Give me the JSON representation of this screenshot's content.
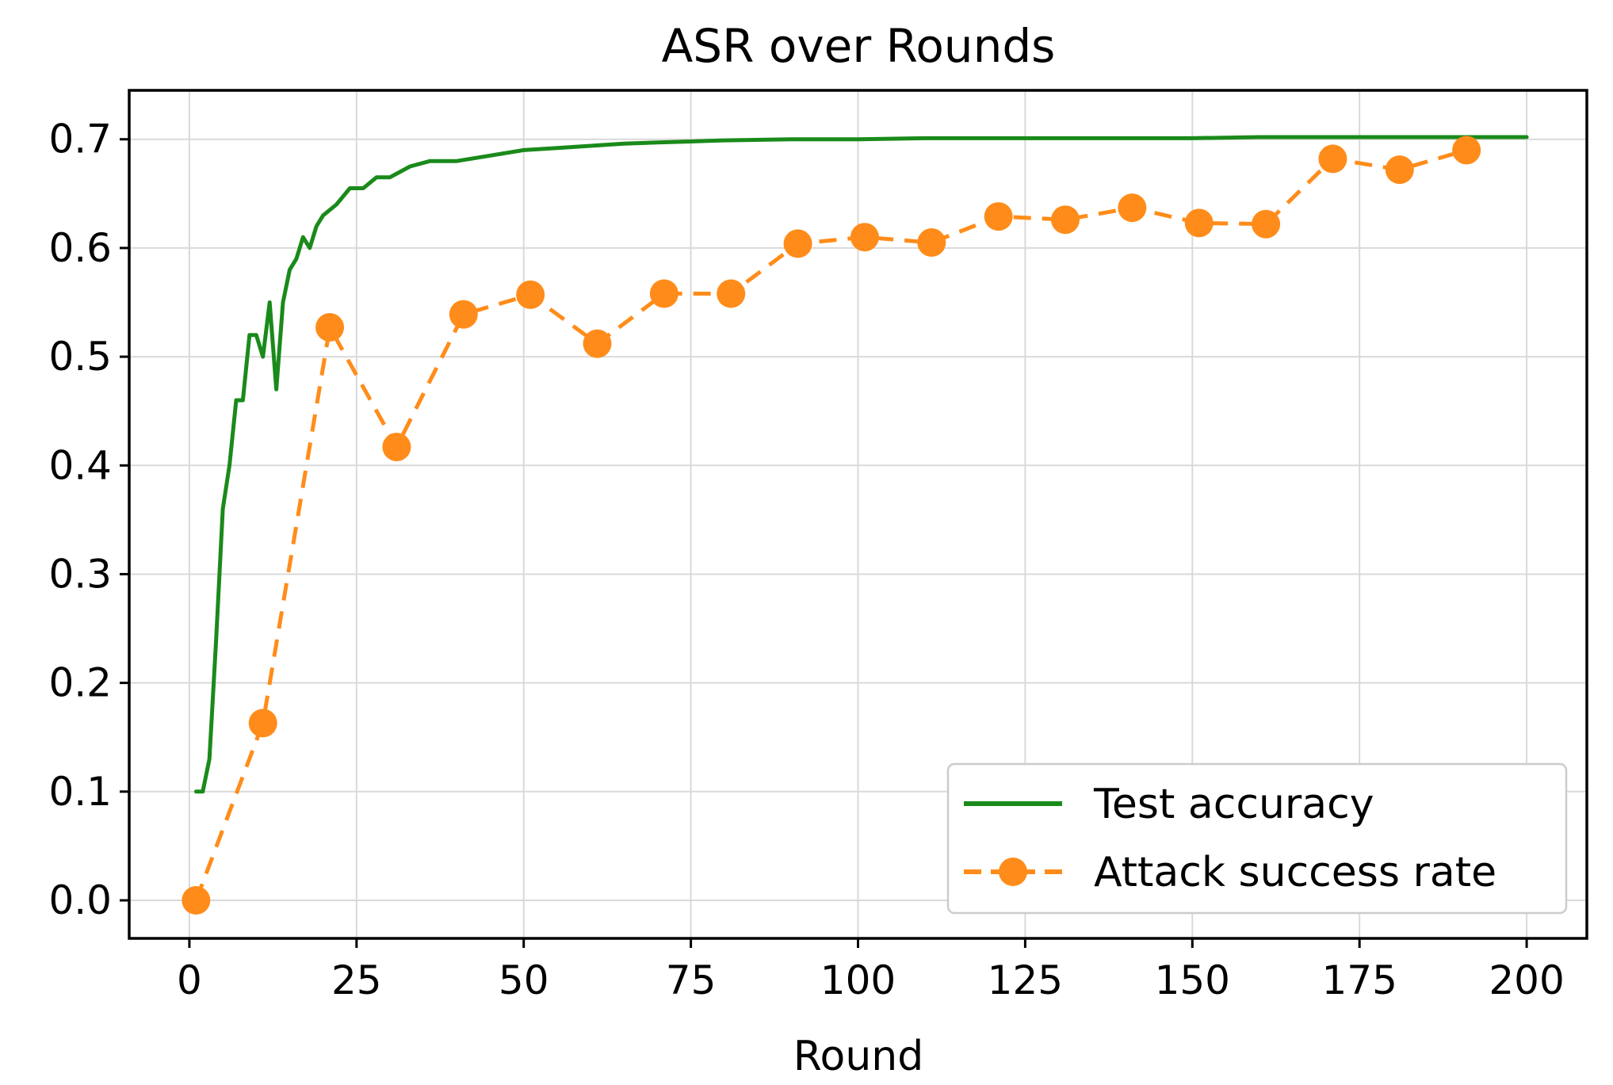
{
  "chart_data": {
    "type": "line",
    "title": "ASR over Rounds",
    "xlabel": "Round",
    "ylabel": "",
    "xlim": [
      -9,
      209
    ],
    "ylim": [
      -0.035,
      0.745
    ],
    "xticks": [
      0,
      25,
      50,
      75,
      100,
      125,
      150,
      175,
      200
    ],
    "xtick_labels": [
      "0",
      "25",
      "50",
      "75",
      "100",
      "125",
      "150",
      "175",
      "200"
    ],
    "yticks": [
      0.0,
      0.1,
      0.2,
      0.3,
      0.4,
      0.5,
      0.6,
      0.7
    ],
    "ytick_labels": [
      "0.0",
      "0.1",
      "0.2",
      "0.3",
      "0.4",
      "0.5",
      "0.6",
      "0.7"
    ],
    "grid": true,
    "legend_position": "lower-right",
    "series": [
      {
        "name": "Test accuracy",
        "style": "solid",
        "color": "#1a8a1a",
        "x": [
          1,
          2,
          3,
          4,
          5,
          6,
          7,
          8,
          9,
          10,
          11,
          12,
          13,
          14,
          15,
          16,
          17,
          18,
          19,
          20,
          22,
          24,
          26,
          28,
          30,
          33,
          36,
          40,
          45,
          50,
          55,
          60,
          65,
          70,
          75,
          80,
          90,
          100,
          110,
          120,
          130,
          140,
          150,
          160,
          170,
          180,
          190,
          200
        ],
        "y": [
          0.1,
          0.1,
          0.13,
          0.24,
          0.36,
          0.4,
          0.46,
          0.46,
          0.52,
          0.52,
          0.5,
          0.55,
          0.47,
          0.55,
          0.58,
          0.59,
          0.61,
          0.6,
          0.62,
          0.63,
          0.64,
          0.655,
          0.655,
          0.665,
          0.665,
          0.675,
          0.68,
          0.68,
          0.685,
          0.69,
          0.692,
          0.694,
          0.696,
          0.697,
          0.698,
          0.699,
          0.7,
          0.7,
          0.701,
          0.701,
          0.701,
          0.701,
          0.701,
          0.702,
          0.702,
          0.702,
          0.702,
          0.702
        ]
      },
      {
        "name": "Attack success rate",
        "style": "dashed",
        "marker": "circle",
        "color": "#ff8c1a",
        "x": [
          1,
          11,
          21,
          31,
          41,
          51,
          61,
          71,
          81,
          91,
          101,
          111,
          121,
          131,
          141,
          151,
          161,
          171,
          181,
          191
        ],
        "y": [
          0.0,
          0.163,
          0.527,
          0.417,
          0.539,
          0.557,
          0.512,
          0.558,
          0.558,
          0.604,
          0.61,
          0.605,
          0.629,
          0.626,
          0.637,
          0.623,
          0.622,
          0.682,
          0.672,
          0.69
        ]
      }
    ]
  }
}
